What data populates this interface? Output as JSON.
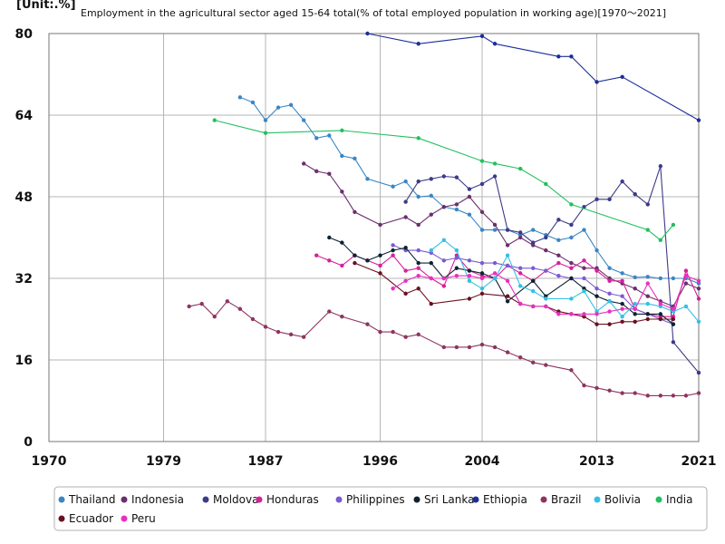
{
  "chart_data": {
    "type": "line",
    "title": "Employment in the agricultural sector aged 15-64 total(% of total employed population in working age)[1970～2021]",
    "unit_label": "[Unit:.%]",
    "xlabel": "",
    "ylabel": "",
    "xlim": [
      1970,
      2021
    ],
    "ylim": [
      0,
      80
    ],
    "x_ticks": [
      1970,
      1979,
      1987,
      1996,
      2004,
      2013,
      2021
    ],
    "y_ticks": [
      0,
      16,
      32,
      48,
      64,
      80
    ],
    "grid": true,
    "legend_position": "bottom",
    "series": [
      {
        "name": "Thailand",
        "color": "#3a86c4",
        "points": [
          [
            1985,
            67.5
          ],
          [
            1986,
            66.5
          ],
          [
            1987,
            63.0
          ],
          [
            1988,
            65.5
          ],
          [
            1989,
            66.0
          ],
          [
            1990,
            63.0
          ],
          [
            1991,
            59.5
          ],
          [
            1992,
            60.0
          ],
          [
            1993,
            56.0
          ],
          [
            1994,
            55.5
          ],
          [
            1995,
            51.5
          ],
          [
            1997,
            50.0
          ],
          [
            1998,
            51.0
          ],
          [
            1999,
            48.0
          ],
          [
            2000,
            48.2
          ],
          [
            2001,
            46.0
          ],
          [
            2002,
            45.5
          ],
          [
            2003,
            44.5
          ],
          [
            2004,
            41.5
          ],
          [
            2005,
            41.5
          ],
          [
            2006,
            41.5
          ],
          [
            2007,
            40.5
          ],
          [
            2008,
            41.5
          ],
          [
            2009,
            40.5
          ],
          [
            2010,
            39.5
          ],
          [
            2011,
            40.0
          ],
          [
            2012,
            41.5
          ],
          [
            2013,
            37.5
          ],
          [
            2014,
            34.0
          ],
          [
            2015,
            33.0
          ],
          [
            2016,
            32.2
          ],
          [
            2017,
            32.3
          ],
          [
            2018,
            32.0
          ],
          [
            2019,
            32.0
          ],
          [
            2020,
            32.0
          ],
          [
            2021,
            31.0
          ]
        ]
      },
      {
        "name": "Indonesia",
        "color": "#6b2f6e",
        "points": [
          [
            1990,
            54.5
          ],
          [
            1991,
            53.0
          ],
          [
            1992,
            52.5
          ],
          [
            1993,
            49.0
          ],
          [
            1994,
            45.0
          ],
          [
            1996,
            42.5
          ],
          [
            1998,
            44.0
          ],
          [
            1999,
            42.5
          ],
          [
            2000,
            44.5
          ],
          [
            2001,
            46.0
          ],
          [
            2002,
            46.5
          ],
          [
            2003,
            48.0
          ],
          [
            2004,
            45.0
          ],
          [
            2005,
            42.5
          ],
          [
            2006,
            38.5
          ],
          [
            2007,
            40.0
          ],
          [
            2008,
            38.5
          ],
          [
            2009,
            37.5
          ],
          [
            2010,
            36.5
          ],
          [
            2011,
            35.0
          ],
          [
            2012,
            34.0
          ],
          [
            2013,
            34.0
          ],
          [
            2014,
            32.0
          ],
          [
            2015,
            31.0
          ],
          [
            2016,
            30.0
          ],
          [
            2017,
            28.5
          ],
          [
            2018,
            27.5
          ],
          [
            2019,
            26.5
          ],
          [
            2020,
            31.0
          ],
          [
            2021,
            30.0
          ]
        ]
      },
      {
        "name": "Moldova",
        "color": "#3c3a8a",
        "points": [
          [
            1998,
            47.0
          ],
          [
            1999,
            51.0
          ],
          [
            2000,
            51.5
          ],
          [
            2001,
            52.0
          ],
          [
            2002,
            51.8
          ],
          [
            2003,
            49.5
          ],
          [
            2004,
            50.5
          ],
          [
            2005,
            52.0
          ],
          [
            2006,
            41.5
          ],
          [
            2007,
            41.0
          ],
          [
            2008,
            39.0
          ],
          [
            2009,
            40.0
          ],
          [
            2010,
            43.5
          ],
          [
            2011,
            42.5
          ],
          [
            2012,
            46.0
          ],
          [
            2013,
            47.5
          ],
          [
            2014,
            47.5
          ],
          [
            2015,
            51.0
          ],
          [
            2016,
            48.5
          ],
          [
            2017,
            46.5
          ],
          [
            2018,
            54.0
          ],
          [
            2019,
            19.5
          ],
          [
            2021,
            13.5
          ]
        ]
      },
      {
        "name": "Honduras",
        "color": "#d6209a",
        "points": [
          [
            1991,
            36.5
          ],
          [
            1992,
            35.5
          ],
          [
            1993,
            34.5
          ],
          [
            1994,
            36.5
          ],
          [
            1995,
            35.5
          ],
          [
            1996,
            34.5
          ],
          [
            1997,
            36.5
          ],
          [
            1998,
            33.5
          ],
          [
            1999,
            34.0
          ],
          [
            2000,
            32.0
          ],
          [
            2001,
            30.5
          ],
          [
            2002,
            36.5
          ],
          [
            2003,
            33.5
          ],
          [
            2004,
            32.5
          ],
          [
            2005,
            32.0
          ],
          [
            2006,
            34.5
          ],
          [
            2007,
            33.0
          ],
          [
            2008,
            31.5
          ],
          [
            2009,
            33.5
          ],
          [
            2010,
            35.0
          ],
          [
            2011,
            34.0
          ],
          [
            2012,
            35.5
          ],
          [
            2013,
            33.5
          ],
          [
            2014,
            31.5
          ],
          [
            2015,
            31.5
          ],
          [
            2016,
            26.0
          ],
          [
            2017,
            25.0
          ],
          [
            2018,
            24.5
          ],
          [
            2019,
            24.5
          ],
          [
            2020,
            33.5
          ],
          [
            2021,
            28.0
          ]
        ]
      },
      {
        "name": "Philippines",
        "color": "#7a5ad0",
        "points": [
          [
            1997,
            38.5
          ],
          [
            1998,
            37.5
          ],
          [
            1999,
            37.5
          ],
          [
            2000,
            37.0
          ],
          [
            2001,
            35.5
          ],
          [
            2002,
            36.0
          ],
          [
            2003,
            35.5
          ],
          [
            2004,
            35.0
          ],
          [
            2005,
            35.0
          ],
          [
            2006,
            34.5
          ],
          [
            2007,
            34.0
          ],
          [
            2008,
            34.0
          ],
          [
            2009,
            33.5
          ],
          [
            2010,
            32.5
          ],
          [
            2011,
            32.0
          ],
          [
            2012,
            32.0
          ],
          [
            2013,
            30.0
          ],
          [
            2014,
            29.0
          ],
          [
            2015,
            28.5
          ],
          [
            2016,
            26.0
          ],
          [
            2017,
            25.0
          ],
          [
            2018,
            24.0
          ],
          [
            2019,
            23.0
          ]
        ]
      },
      {
        "name": "Sri Lanka",
        "color": "#0d2230",
        "points": [
          [
            1992,
            40.0
          ],
          [
            1993,
            39.0
          ],
          [
            1994,
            36.5
          ],
          [
            1995,
            35.5
          ],
          [
            1996,
            36.5
          ],
          [
            1997,
            37.5
          ],
          [
            1998,
            38.0
          ],
          [
            1999,
            35.0
          ],
          [
            2000,
            35.0
          ],
          [
            2001,
            32.0
          ],
          [
            2002,
            34.0
          ],
          [
            2003,
            33.5
          ],
          [
            2004,
            33.0
          ],
          [
            2005,
            32.0
          ],
          [
            2006,
            27.5
          ],
          [
            2008,
            31.5
          ],
          [
            2009,
            28.5
          ],
          [
            2011,
            32.0
          ],
          [
            2012,
            30.0
          ],
          [
            2013,
            28.5
          ],
          [
            2014,
            27.5
          ],
          [
            2015,
            27.0
          ],
          [
            2016,
            25.0
          ],
          [
            2017,
            25.0
          ],
          [
            2018,
            25.0
          ],
          [
            2019,
            23.0
          ]
        ]
      },
      {
        "name": "Ethiopia",
        "color": "#1a2e9a",
        "points": [
          [
            1995,
            80.0
          ],
          [
            1999,
            78.0
          ],
          [
            2004,
            79.5
          ],
          [
            2005,
            78.0
          ],
          [
            2010,
            75.5
          ],
          [
            2011,
            75.5
          ],
          [
            2013,
            70.5
          ],
          [
            2015,
            71.5
          ],
          [
            2021,
            63.0
          ]
        ]
      },
      {
        "name": "Brazil",
        "color": "#8e3460",
        "points": [
          [
            1981,
            26.5
          ],
          [
            1982,
            27.0
          ],
          [
            1983,
            24.5
          ],
          [
            1984,
            27.5
          ],
          [
            1985,
            26.0
          ],
          [
            1986,
            24.0
          ],
          [
            1987,
            22.5
          ],
          [
            1988,
            21.5
          ],
          [
            1989,
            21.0
          ],
          [
            1990,
            20.5
          ],
          [
            1992,
            25.5
          ],
          [
            1993,
            24.5
          ],
          [
            1995,
            23.0
          ],
          [
            1996,
            21.5
          ],
          [
            1997,
            21.5
          ],
          [
            1998,
            20.5
          ],
          [
            1999,
            21.0
          ],
          [
            2001,
            18.5
          ],
          [
            2002,
            18.5
          ],
          [
            2003,
            18.5
          ],
          [
            2004,
            19.0
          ],
          [
            2005,
            18.5
          ],
          [
            2006,
            17.5
          ],
          [
            2007,
            16.5
          ],
          [
            2008,
            15.5
          ],
          [
            2009,
            15.0
          ],
          [
            2011,
            14.0
          ],
          [
            2012,
            11.0
          ],
          [
            2013,
            10.5
          ],
          [
            2014,
            10.0
          ],
          [
            2015,
            9.5
          ],
          [
            2016,
            9.5
          ],
          [
            2017,
            9.0
          ],
          [
            2018,
            9.0
          ],
          [
            2019,
            9.0
          ],
          [
            2020,
            9.0
          ],
          [
            2021,
            9.5
          ]
        ]
      },
      {
        "name": "Bolivia",
        "color": "#33c0e6",
        "points": [
          [
            2000,
            37.5
          ],
          [
            2001,
            39.5
          ],
          [
            2002,
            37.5
          ],
          [
            2003,
            31.5
          ],
          [
            2004,
            30.0
          ],
          [
            2005,
            32.0
          ],
          [
            2006,
            36.5
          ],
          [
            2007,
            30.5
          ],
          [
            2008,
            29.5
          ],
          [
            2009,
            28.0
          ],
          [
            2011,
            28.0
          ],
          [
            2012,
            29.5
          ],
          [
            2013,
            25.5
          ],
          [
            2014,
            27.5
          ],
          [
            2015,
            24.5
          ],
          [
            2016,
            27.0
          ],
          [
            2017,
            27.0
          ],
          [
            2018,
            26.5
          ],
          [
            2019,
            25.5
          ],
          [
            2020,
            26.5
          ],
          [
            2021,
            23.5
          ]
        ]
      },
      {
        "name": "India",
        "color": "#22c060",
        "points": [
          [
            1983,
            63.0
          ],
          [
            1987,
            60.5
          ],
          [
            1993,
            61.0
          ],
          [
            1999,
            59.5
          ],
          [
            2004,
            55.0
          ],
          [
            2005,
            54.5
          ],
          [
            2007,
            53.5
          ],
          [
            2009,
            50.5
          ],
          [
            2011,
            46.5
          ],
          [
            2017,
            41.5
          ],
          [
            2018,
            39.5
          ],
          [
            2019,
            42.5
          ]
        ]
      },
      {
        "name": "Ecuador",
        "color": "#6b1020",
        "points": [
          [
            1994,
            35.0
          ],
          [
            1996,
            33.0
          ],
          [
            1998,
            29.0
          ],
          [
            1999,
            30.0
          ],
          [
            2000,
            27.0
          ],
          [
            2003,
            28.0
          ],
          [
            2004,
            29.0
          ],
          [
            2006,
            28.5
          ],
          [
            2007,
            27.0
          ],
          [
            2008,
            26.5
          ],
          [
            2009,
            26.5
          ],
          [
            2010,
            25.5
          ],
          [
            2011,
            25.0
          ],
          [
            2012,
            24.5
          ],
          [
            2013,
            23.0
          ],
          [
            2014,
            23.0
          ],
          [
            2015,
            23.5
          ],
          [
            2016,
            23.5
          ],
          [
            2017,
            24.0
          ],
          [
            2018,
            24.0
          ],
          [
            2019,
            24.0
          ]
        ]
      },
      {
        "name": "Peru",
        "color": "#e830c0",
        "points": [
          [
            1997,
            30.0
          ],
          [
            1998,
            31.5
          ],
          [
            1999,
            32.5
          ],
          [
            2000,
            32.0
          ],
          [
            2001,
            32.0
          ],
          [
            2002,
            32.5
          ],
          [
            2003,
            32.5
          ],
          [
            2004,
            32.0
          ],
          [
            2005,
            33.0
          ],
          [
            2006,
            31.5
          ],
          [
            2007,
            27.0
          ],
          [
            2008,
            26.5
          ],
          [
            2009,
            26.5
          ],
          [
            2010,
            25.0
          ],
          [
            2011,
            25.0
          ],
          [
            2012,
            25.0
          ],
          [
            2013,
            25.0
          ],
          [
            2014,
            25.5
          ],
          [
            2015,
            26.0
          ],
          [
            2016,
            26.0
          ],
          [
            2017,
            31.0
          ],
          [
            2018,
            27.0
          ],
          [
            2019,
            26.0
          ],
          [
            2020,
            32.5
          ],
          [
            2021,
            31.5
          ]
        ]
      }
    ]
  }
}
